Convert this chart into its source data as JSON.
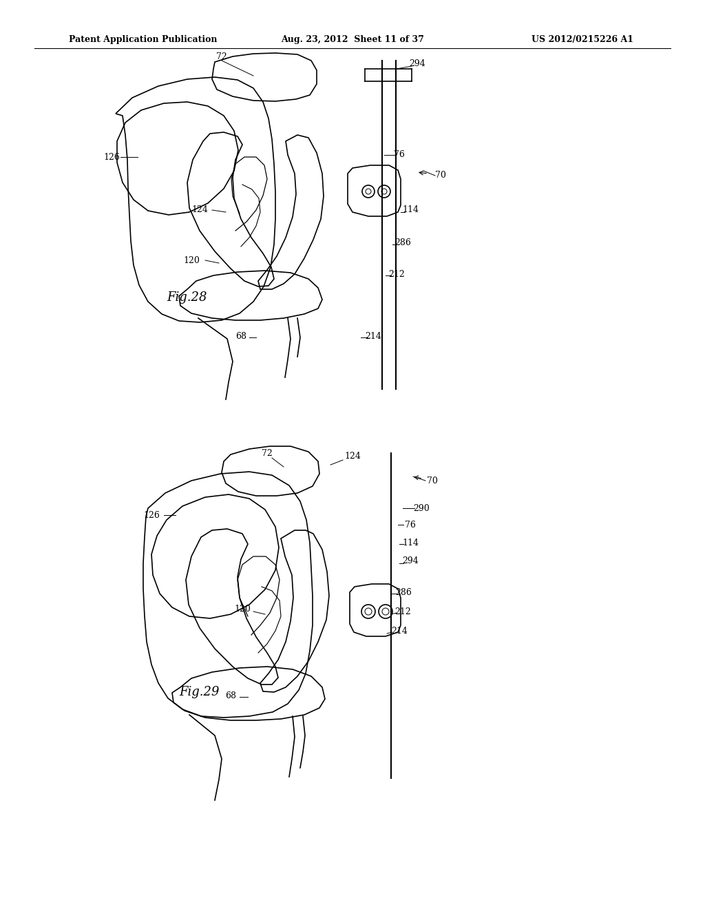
{
  "title_left": "Patent Application Publication",
  "title_mid": "Aug. 23, 2012  Sheet 11 of 37",
  "title_right": "US 2012/0215226 A1",
  "background_color": "#ffffff",
  "line_color": "#000000",
  "fig28_label": "Fig.28",
  "fig29_label": "Fig.29",
  "header_fontsize": 9,
  "label_fontsize": 9,
  "fig_label_fontsize": 13
}
